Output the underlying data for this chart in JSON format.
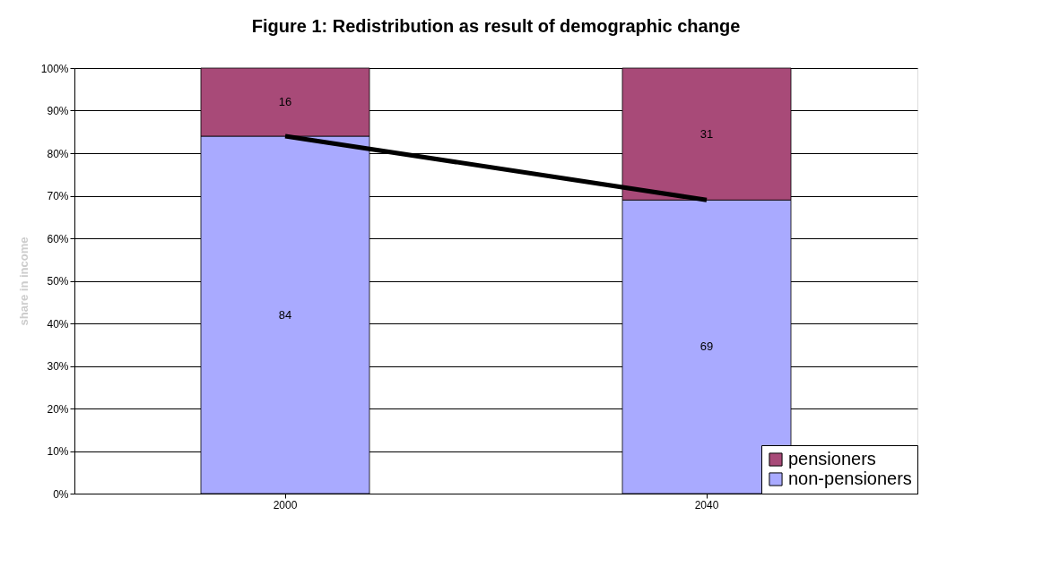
{
  "chart_data": {
    "type": "bar",
    "title": "Figure 1: Redistribution as result of demographic change",
    "ylabel": "share in income",
    "categories": [
      "2000",
      "2040"
    ],
    "stacked": true,
    "data_labels": true,
    "grid": "y",
    "legend": "bottom right",
    "ylim": [
      0,
      100
    ],
    "yticks": [
      {
        "value": 0,
        "label": "0%"
      },
      {
        "value": 10,
        "label": "10%"
      },
      {
        "value": 20,
        "label": "20%"
      },
      {
        "value": 30,
        "label": "30%"
      },
      {
        "value": 40,
        "label": "40%"
      },
      {
        "value": 50,
        "label": "50%"
      },
      {
        "value": 60,
        "label": "60%"
      },
      {
        "value": 70,
        "label": "70%"
      },
      {
        "value": 80,
        "label": "80%"
      },
      {
        "value": 90,
        "label": "90%"
      },
      {
        "value": 100,
        "label": "100%"
      }
    ],
    "series": [
      {
        "name": "non-pensioners",
        "color": "#a9aaff",
        "values": [
          84,
          69
        ]
      },
      {
        "name": "pensioners",
        "color": "#a84a78",
        "values": [
          16,
          31
        ]
      },
      {
        "type": "line",
        "color": "#000000",
        "values": [
          84,
          69
        ],
        "value_labels": [
          null,
          null
        ]
      }
    ]
  }
}
